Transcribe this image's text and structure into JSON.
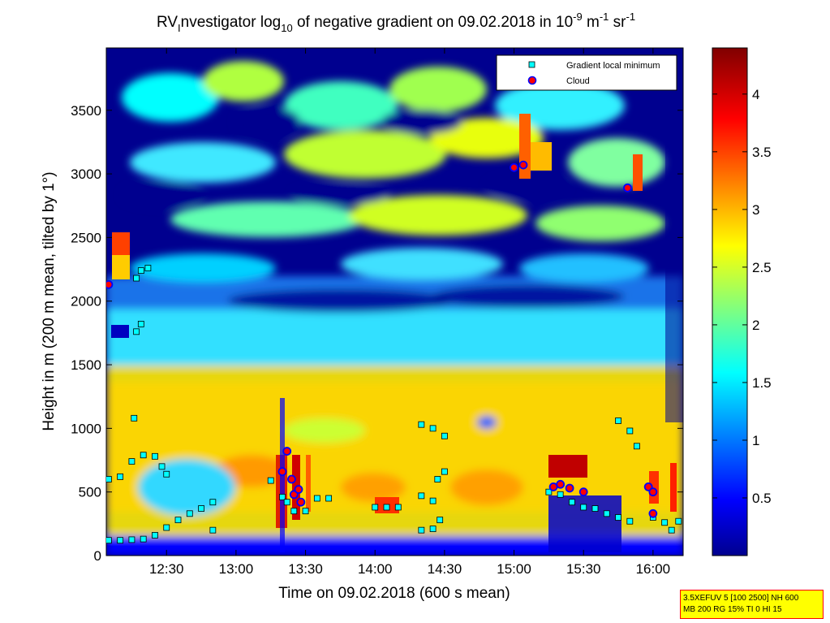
{
  "chart_data": {
    "type": "heatmap",
    "title": "RVInvestigator log10 of negative gradient on 09.02.2018 in 10-9 m-1 sr-1",
    "title_parts": {
      "a": "RV",
      "a_sub": "I",
      "b": "nvestigator log",
      "b_sub": "10",
      "c": " of negative gradient on 09.02.2018 in 10",
      "c_sup": "-9",
      "d": " m",
      "d_sup": "-1",
      "e": " sr",
      "e_sup": "-1"
    },
    "xlabel": "Time on 09.02.2018 (600 s mean)",
    "ylabel": "Height in m (200 m mean, tilted by 1°)",
    "xlim": [
      "12:04",
      "16:13"
    ],
    "ylim": [
      0,
      3990
    ],
    "xticks": [
      "12:30",
      "13:00",
      "13:30",
      "14:00",
      "14:30",
      "15:00",
      "15:30",
      "16:00"
    ],
    "yticks": [
      0,
      500,
      1000,
      1500,
      2000,
      2500,
      3000,
      3500
    ],
    "colorbar": {
      "colormap": "jet",
      "range": [
        0,
        4.4
      ],
      "ticks": [
        "0.5",
        "1",
        "1.5",
        "2",
        "2.5",
        "3",
        "3.5",
        "4"
      ]
    },
    "legend": {
      "placement": "top-right",
      "entries": [
        {
          "label": "Gradient local minimum",
          "marker": "square",
          "color": "#00ffff"
        },
        {
          "label": "Cloud",
          "marker": "circle",
          "color": "#ff0000",
          "edge": "#0000ff"
        }
      ]
    },
    "series": [
      {
        "name": "Gradient local minimum",
        "points": [
          [
            "12:05",
            120
          ],
          [
            "12:10",
            120
          ],
          [
            "12:15",
            125
          ],
          [
            "12:20",
            130
          ],
          [
            "12:25",
            160
          ],
          [
            "12:30",
            220
          ],
          [
            "12:35",
            280
          ],
          [
            "12:40",
            330
          ],
          [
            "12:45",
            370
          ],
          [
            "12:50",
            420
          ],
          [
            "12:50",
            200
          ],
          [
            "12:05",
            600
          ],
          [
            "12:10",
            620
          ],
          [
            "12:15",
            740
          ],
          [
            "12:20",
            790
          ],
          [
            "12:25",
            780
          ],
          [
            "12:28",
            700
          ],
          [
            "12:30",
            640
          ],
          [
            "12:17",
            2180
          ],
          [
            "12:19",
            2240
          ],
          [
            "12:22",
            2260
          ],
          [
            "12:17",
            1760
          ],
          [
            "12:19",
            1820
          ],
          [
            "12:16",
            1080
          ],
          [
            "13:15",
            590
          ],
          [
            "13:20",
            460
          ],
          [
            "13:22",
            420
          ],
          [
            "13:25",
            350
          ],
          [
            "13:30",
            350
          ],
          [
            "13:35",
            450
          ],
          [
            "13:40",
            450
          ],
          [
            "14:00",
            380
          ],
          [
            "14:05",
            380
          ],
          [
            "14:10",
            380
          ],
          [
            "14:20",
            200
          ],
          [
            "14:25",
            210
          ],
          [
            "14:28",
            280
          ],
          [
            "14:20",
            470
          ],
          [
            "14:25",
            430
          ],
          [
            "14:20",
            1030
          ],
          [
            "14:25",
            1000
          ],
          [
            "14:30",
            940
          ],
          [
            "14:27",
            600
          ],
          [
            "14:30",
            660
          ],
          [
            "15:15",
            500
          ],
          [
            "15:20",
            480
          ],
          [
            "15:25",
            420
          ],
          [
            "15:30",
            380
          ],
          [
            "15:35",
            370
          ],
          [
            "15:40",
            330
          ],
          [
            "15:45",
            300
          ],
          [
            "15:50",
            270
          ],
          [
            "15:45",
            1060
          ],
          [
            "15:50",
            980
          ],
          [
            "15:53",
            860
          ],
          [
            "16:00",
            300
          ],
          [
            "16:05",
            260
          ],
          [
            "16:08",
            200
          ],
          [
            "16:11",
            270
          ]
        ]
      },
      {
        "name": "Cloud",
        "points": [
          [
            "12:05",
            2130
          ],
          [
            "13:20",
            660
          ],
          [
            "13:22",
            820
          ],
          [
            "13:24",
            600
          ],
          [
            "13:25",
            480
          ],
          [
            "13:27",
            520
          ],
          [
            "13:28",
            420
          ],
          [
            "15:00",
            3050
          ],
          [
            "15:04",
            3070
          ],
          [
            "15:49",
            2890
          ],
          [
            "15:17",
            540
          ],
          [
            "15:20",
            560
          ],
          [
            "15:24",
            530
          ],
          [
            "15:30",
            500
          ],
          [
            "15:58",
            540
          ],
          [
            "16:00",
            500
          ],
          [
            "16:00",
            330
          ]
        ]
      }
    ],
    "annotation": {
      "line1": "3.5XEFUV 5 [100 2500] NH 600",
      "line2": "MB 200 RG 15% TI 0 HI 15"
    }
  }
}
